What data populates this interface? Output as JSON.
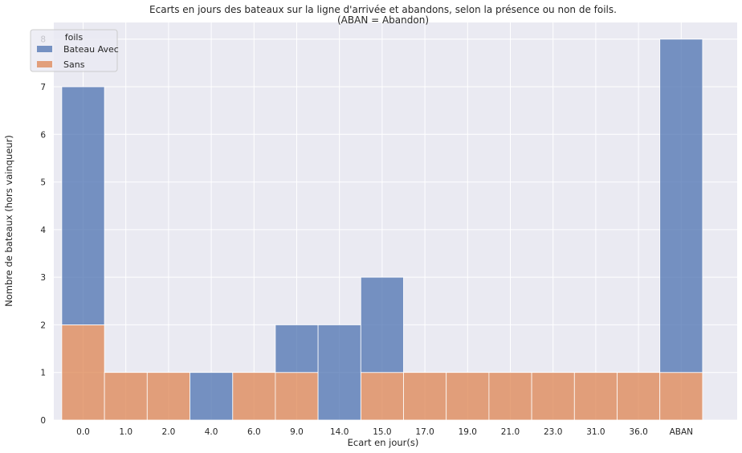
{
  "chart_data": {
    "type": "bar",
    "stacked": true,
    "title": "Ecarts en jours des bateaux sur la ligne d'arrivée et abandons, selon la présence ou non de foils.",
    "subtitle": "(ABAN = Abandon)",
    "xlabel": "Ecart en jour(s)",
    "ylabel": "Nombre de bateaux (hors vainqueur)",
    "categories": [
      "0.0",
      "1.0",
      "2.0",
      "4.0",
      "6.0",
      "9.0",
      "14.0",
      "15.0",
      "17.0",
      "19.0",
      "21.0",
      "23.0",
      "31.0",
      "36.0",
      "ABAN"
    ],
    "series": [
      {
        "name": "Sans",
        "color": "#dd8452",
        "values": [
          2,
          1,
          1,
          0,
          1,
          1,
          0,
          1,
          1,
          1,
          1,
          1,
          1,
          1,
          1
        ]
      },
      {
        "name": "Bateau Avec",
        "color": "#4c72b0",
        "values": [
          5,
          0,
          0,
          1,
          0,
          1,
          2,
          2,
          0,
          0,
          0,
          0,
          0,
          0,
          7
        ]
      }
    ],
    "ylim": [
      0,
      8.35
    ],
    "yticks": [
      0,
      1,
      2,
      3,
      4,
      5,
      6,
      7,
      8
    ],
    "grid": true,
    "legend": {
      "title": "foils",
      "placement": "top-left",
      "order": [
        "Bateau Avec",
        "Sans"
      ]
    }
  }
}
